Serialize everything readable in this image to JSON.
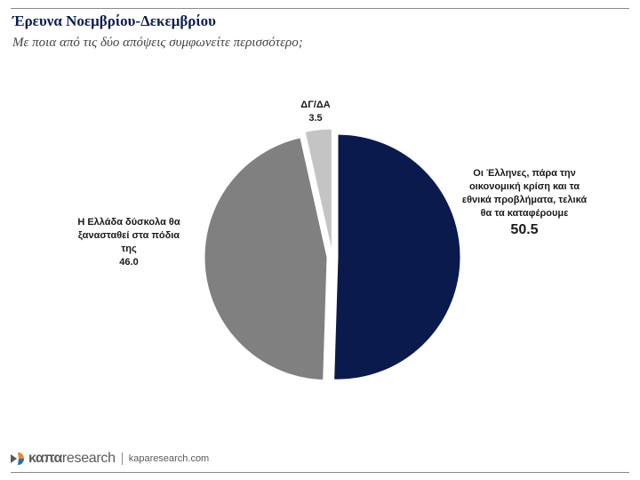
{
  "header": {
    "title": "Έρευνα Νοεμβρίου-Δεκεμβρίου",
    "subtitle": "Με ποια από τις δύο απόψεις συμφωνείτε περισσότερο;"
  },
  "chart_data": {
    "type": "pie",
    "title": "",
    "slices": [
      {
        "label": "Οι Έλληνες, πάρα την οικονομική κρίση και τα εθνικά προβλήματα, τελικά θα τα καταφέρουμε",
        "value": 50.5,
        "display": "50.5",
        "color": "#0b1a4d"
      },
      {
        "label": "Η Ελλάδα δύσκολα θα ξανασταθεί στα πόδια της",
        "value": 46.0,
        "display": "46.0",
        "color": "#808080"
      },
      {
        "label": "ΔΓ/ΔΑ",
        "value": 3.5,
        "display": "3.5",
        "color": "#c4c4c4"
      }
    ],
    "legend": "none"
  },
  "footer": {
    "brand_kapa": "καπα",
    "brand_research": "research",
    "url": "kaparesearch.com",
    "accent_color": "#e8872a"
  }
}
